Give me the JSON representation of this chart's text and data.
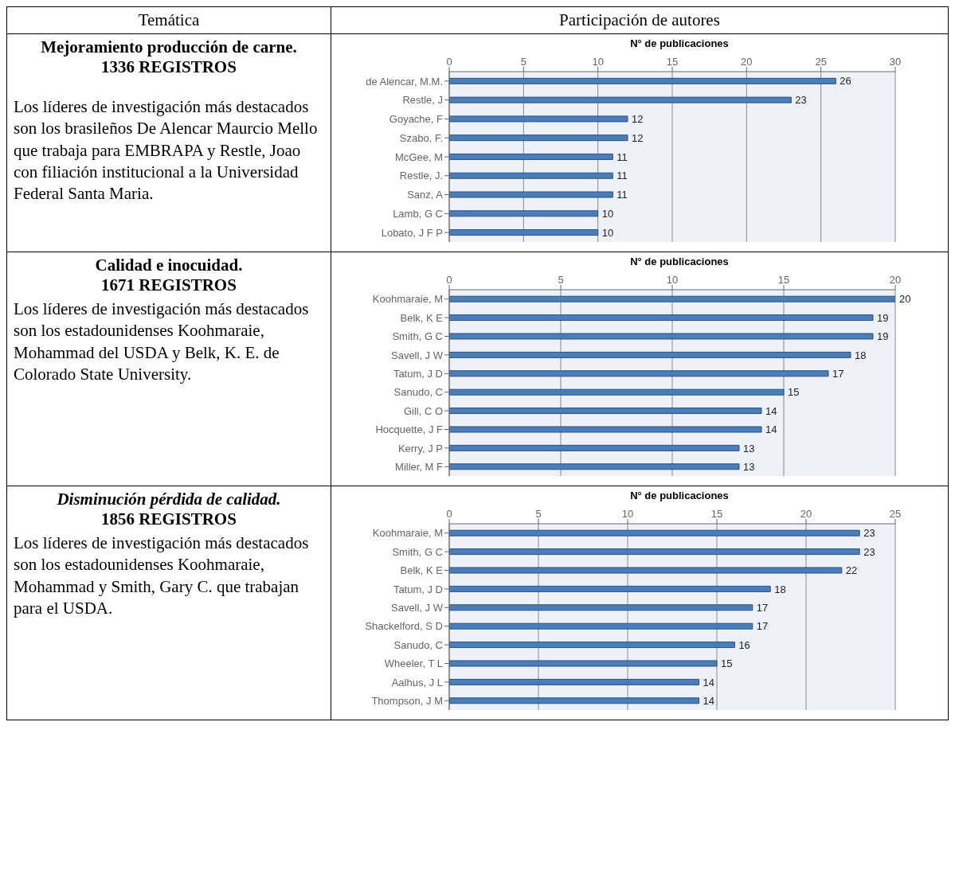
{
  "chart_data": [
    {
      "type": "bar",
      "orientation": "horizontal",
      "title": "N° de publicaciones",
      "categories": [
        "de Alencar, M.M.",
        "Restle, J",
        "Goyache, F",
        "Szabo, F.",
        "McGee, M",
        "Restle, J.",
        "Sanz, A",
        "Lamb, G C",
        "Lobato, J F P"
      ],
      "values": [
        26,
        23,
        12,
        12,
        11,
        11,
        11,
        10,
        10
      ],
      "color": "#4a7ebb",
      "xlim": [
        0,
        30
      ],
      "xticks": [
        0,
        5,
        10,
        15,
        20,
        25,
        30
      ],
      "grid": "x",
      "data_labels": true,
      "annotations": [
        "Temática",
        "Participación de autores",
        "Mejoramiento producción de carne.",
        "1336 REGISTROS",
        "Los líderes de investigación más destacados son los brasileños De Alencar Maurcio Mello que trabaja para EMBRAPA y Restle, Joao con filiación institucional a la Universidad Federal Santa Maria."
      ]
    },
    {
      "type": "bar",
      "orientation": "horizontal",
      "title": "N° de publicaciones",
      "categories": [
        "Koohmaraie, M",
        "Belk, K E",
        "Smith, G C",
        "Savell, J W",
        "Tatum, J D",
        "Sanudo, C",
        "Gill, C O",
        "Hocquette, J F",
        "Kerry, J P",
        "Miller, M F"
      ],
      "values": [
        20,
        19,
        19,
        18,
        17,
        15,
        14,
        14,
        13,
        13
      ],
      "color": "#4a7ebb",
      "xlim": [
        0,
        20
      ],
      "xticks": [
        0,
        5,
        10,
        15,
        20
      ],
      "grid": "x",
      "data_labels": true,
      "annotations": [
        "Calidad e inocuidad.",
        "1671 REGISTROS",
        "Los líderes de investigación más destacados son los estadounidenses Koohmaraie, Mohammad del USDA y Belk, K. E. de Colorado State University."
      ]
    },
    {
      "type": "bar",
      "orientation": "horizontal",
      "title": "N° de publicaciones",
      "categories": [
        "Koohmaraie, M",
        "Smith, G C",
        "Belk, K E",
        "Tatum, J D",
        "Savell, J W",
        "Shackelford, S D",
        "Sanudo, C",
        "Wheeler, T L",
        "Aalhus, J L",
        "Thompson, J M"
      ],
      "values": [
        23,
        23,
        22,
        18,
        17,
        17,
        16,
        15,
        14,
        14
      ],
      "color": "#4a7ebb",
      "xlim": [
        0,
        25
      ],
      "xticks": [
        0,
        5,
        10,
        15,
        20,
        25
      ],
      "grid": "x",
      "data_labels": true,
      "annotations": [
        "Disminución pérdida de calidad.",
        "1856 REGISTROS",
        "Los líderes de investigación más destacados son los estadounidenses Koohmaraie, Mohammad y Smith, Gary C. que trabajan para el USDA."
      ]
    }
  ]
}
